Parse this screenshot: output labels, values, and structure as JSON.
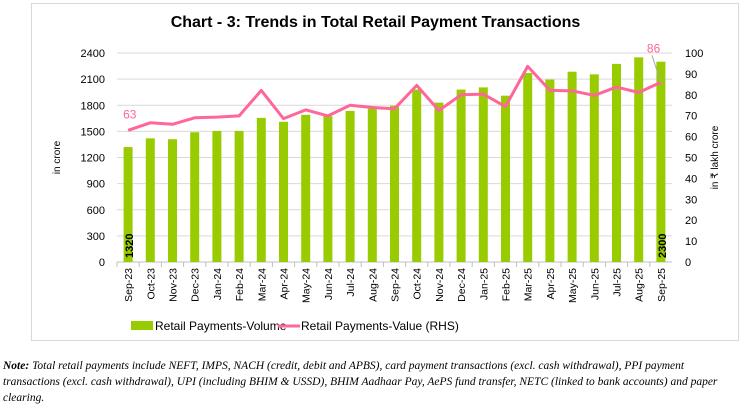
{
  "chart_data": {
    "type": "bar+line",
    "title": "Chart - 3: Trends in Total Retail Payment Transactions",
    "ylabel": "in crore",
    "ylabel_right": "in ₹ lakh crore",
    "ylim": [
      0,
      2400
    ],
    "yticks": [
      0,
      300,
      600,
      900,
      1200,
      1500,
      1800,
      2100,
      2400
    ],
    "ylim_right": [
      0,
      100
    ],
    "yticks_right": [
      0,
      10,
      20,
      30,
      40,
      50,
      60,
      70,
      80,
      90,
      100
    ],
    "grid": true,
    "legend_position": "bottom",
    "categories": [
      "Sep-23",
      "Oct-23",
      "Nov-23",
      "Dec-23",
      "Jan-24",
      "Feb-24",
      "Mar-24",
      "Apr-24",
      "May-24",
      "Jun-24",
      "Jul-24",
      "Aug-24",
      "Sep-24",
      "Oct-24",
      "Nov-24",
      "Dec-24",
      "Jan-25",
      "Feb-25",
      "Mar-25",
      "Apr-25",
      "May-25",
      "Jun-25",
      "Jul-25",
      "Aug-25",
      "Sep-25"
    ],
    "series": [
      {
        "name": "Retail Payments-Volume",
        "type": "bar",
        "axis": "left",
        "color": "#99cc00",
        "values": [
          1320,
          1420,
          1410,
          1490,
          1505,
          1505,
          1655,
          1610,
          1690,
          1675,
          1735,
          1785,
          1795,
          1980,
          1830,
          1980,
          2005,
          1910,
          2170,
          2095,
          2185,
          2155,
          2275,
          2350,
          2300
        ],
        "labels": {
          "0": "1320",
          "24": "2300"
        }
      },
      {
        "name": "Retail Payments-Value (RHS)",
        "type": "line",
        "axis": "right",
        "color": "#ff6699",
        "values": [
          63,
          66.6,
          65.9,
          69,
          69.3,
          69.9,
          82.1,
          68.6,
          72.8,
          69.9,
          75,
          73.9,
          73.3,
          84.5,
          72.5,
          80,
          80.3,
          74.4,
          93.6,
          82.1,
          81.9,
          79.7,
          83.7,
          81.1,
          86
        ],
        "labels": {
          "0": "63",
          "24": "86"
        }
      }
    ]
  },
  "note": {
    "prefix": "Note:",
    "text": " Total retail payments include NEFT, IMPS, NACH (credit, debit and APBS), card payment transactions (excl. cash withdrawal), PPI payment transactions (excl. cash withdrawal), UPI (including BHIM & USSD), BHIM Aadhaar Pay, AePS fund transfer, NETC (linked to bank accounts) and paper clearing."
  }
}
